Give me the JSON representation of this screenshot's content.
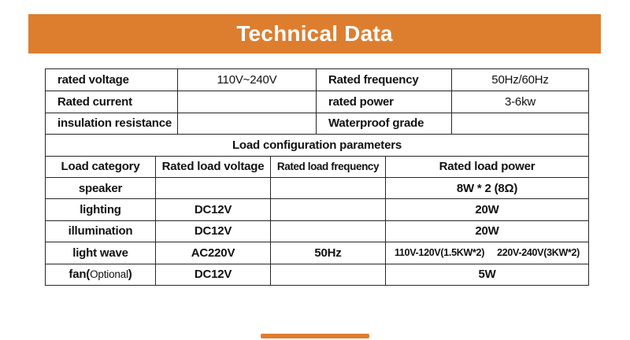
{
  "page": {
    "background": "#FFFFFF",
    "accent_color": "#DD7E2F",
    "border_color": "#262626",
    "text_color": "#111111"
  },
  "banner": {
    "title": "Technical Data"
  },
  "table": {
    "top_rows": [
      {
        "c0": "rated voltage",
        "c1": "110V~240V",
        "c2": "Rated frequency",
        "c3": "50Hz/60Hz"
      },
      {
        "c0": "Rated current",
        "c1": "",
        "c2": "rated power",
        "c3": "3-6kw"
      },
      {
        "c0": "insulation resistance",
        "c1": "",
        "c2": "Waterproof grade",
        "c3": ""
      }
    ],
    "section_title": "Load configuration parameters",
    "load_headers": [
      "Load category",
      "Rated load voltage",
      "Rated load frequency",
      "Rated load power"
    ],
    "load_rows": [
      {
        "c0": "speaker",
        "c1": "",
        "c2": "",
        "c3": "8W * 2 (8Ω)"
      },
      {
        "c0": "lighting",
        "c1": "DC12V",
        "c2": "",
        "c3": "20W"
      },
      {
        "c0": "illumination",
        "c1": "DC12V",
        "c2": "",
        "c3": "20W"
      },
      {
        "c0": "light wave",
        "c1": "AC220V",
        "c2": "50Hz",
        "c3_parts": [
          "110V-120V(1.5KW*2)",
          "220V-240V(3KW*2)"
        ]
      },
      {
        "c0_bold": "fan(",
        "c0_light": "Optional",
        "c0_close": ")",
        "c1": "DC12V",
        "c2": "",
        "c3": "5W"
      }
    ]
  }
}
